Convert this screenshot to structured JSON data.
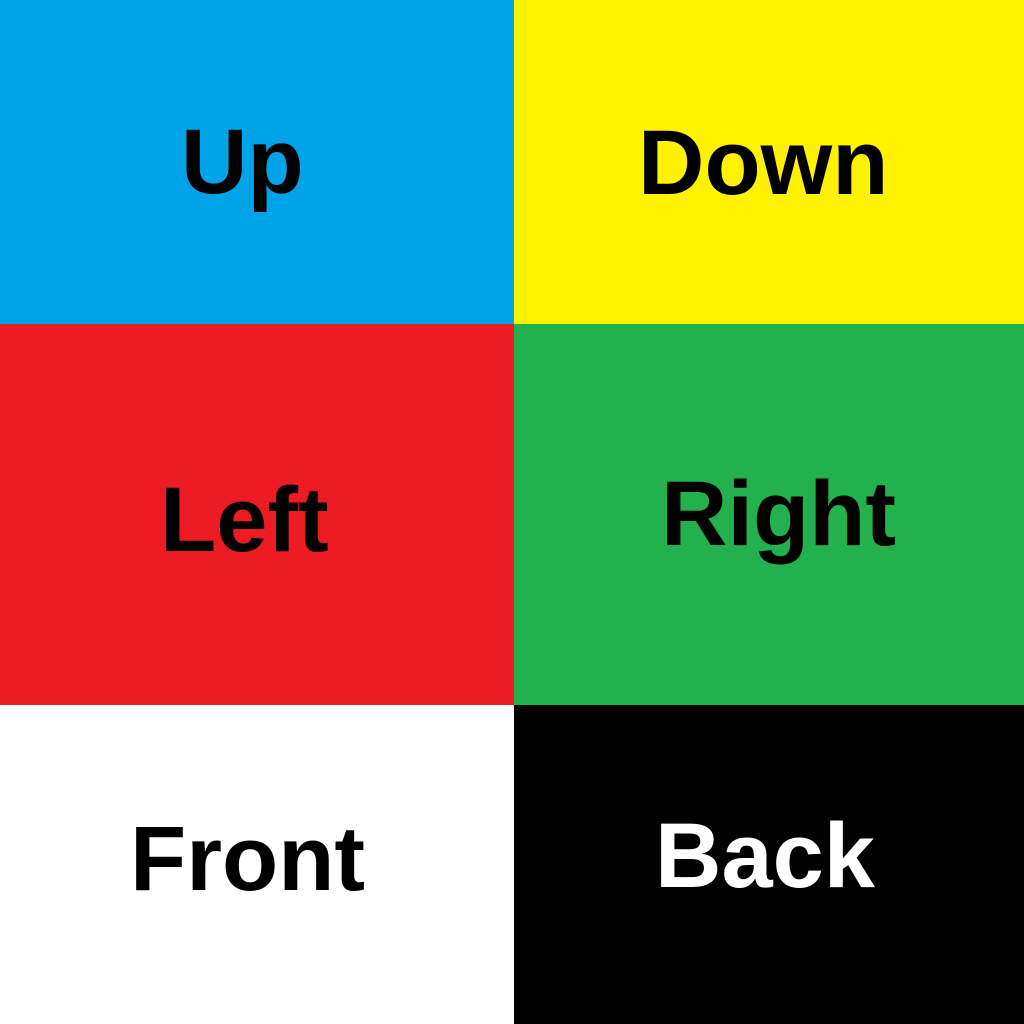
{
  "tiles": [
    {
      "label": "Up",
      "color": "#00a2e8",
      "text_color": "#000000"
    },
    {
      "label": "Down",
      "color": "#fff200",
      "text_color": "#000000"
    },
    {
      "label": "Left",
      "color": "#ed1c24",
      "text_color": "#000000"
    },
    {
      "label": "Right",
      "color": "#22b14c",
      "text_color": "#000000"
    },
    {
      "label": "Front",
      "color": "#ffffff",
      "text_color": "#000000"
    },
    {
      "label": "Back",
      "color": "#000000",
      "text_color": "#ffffff"
    }
  ]
}
